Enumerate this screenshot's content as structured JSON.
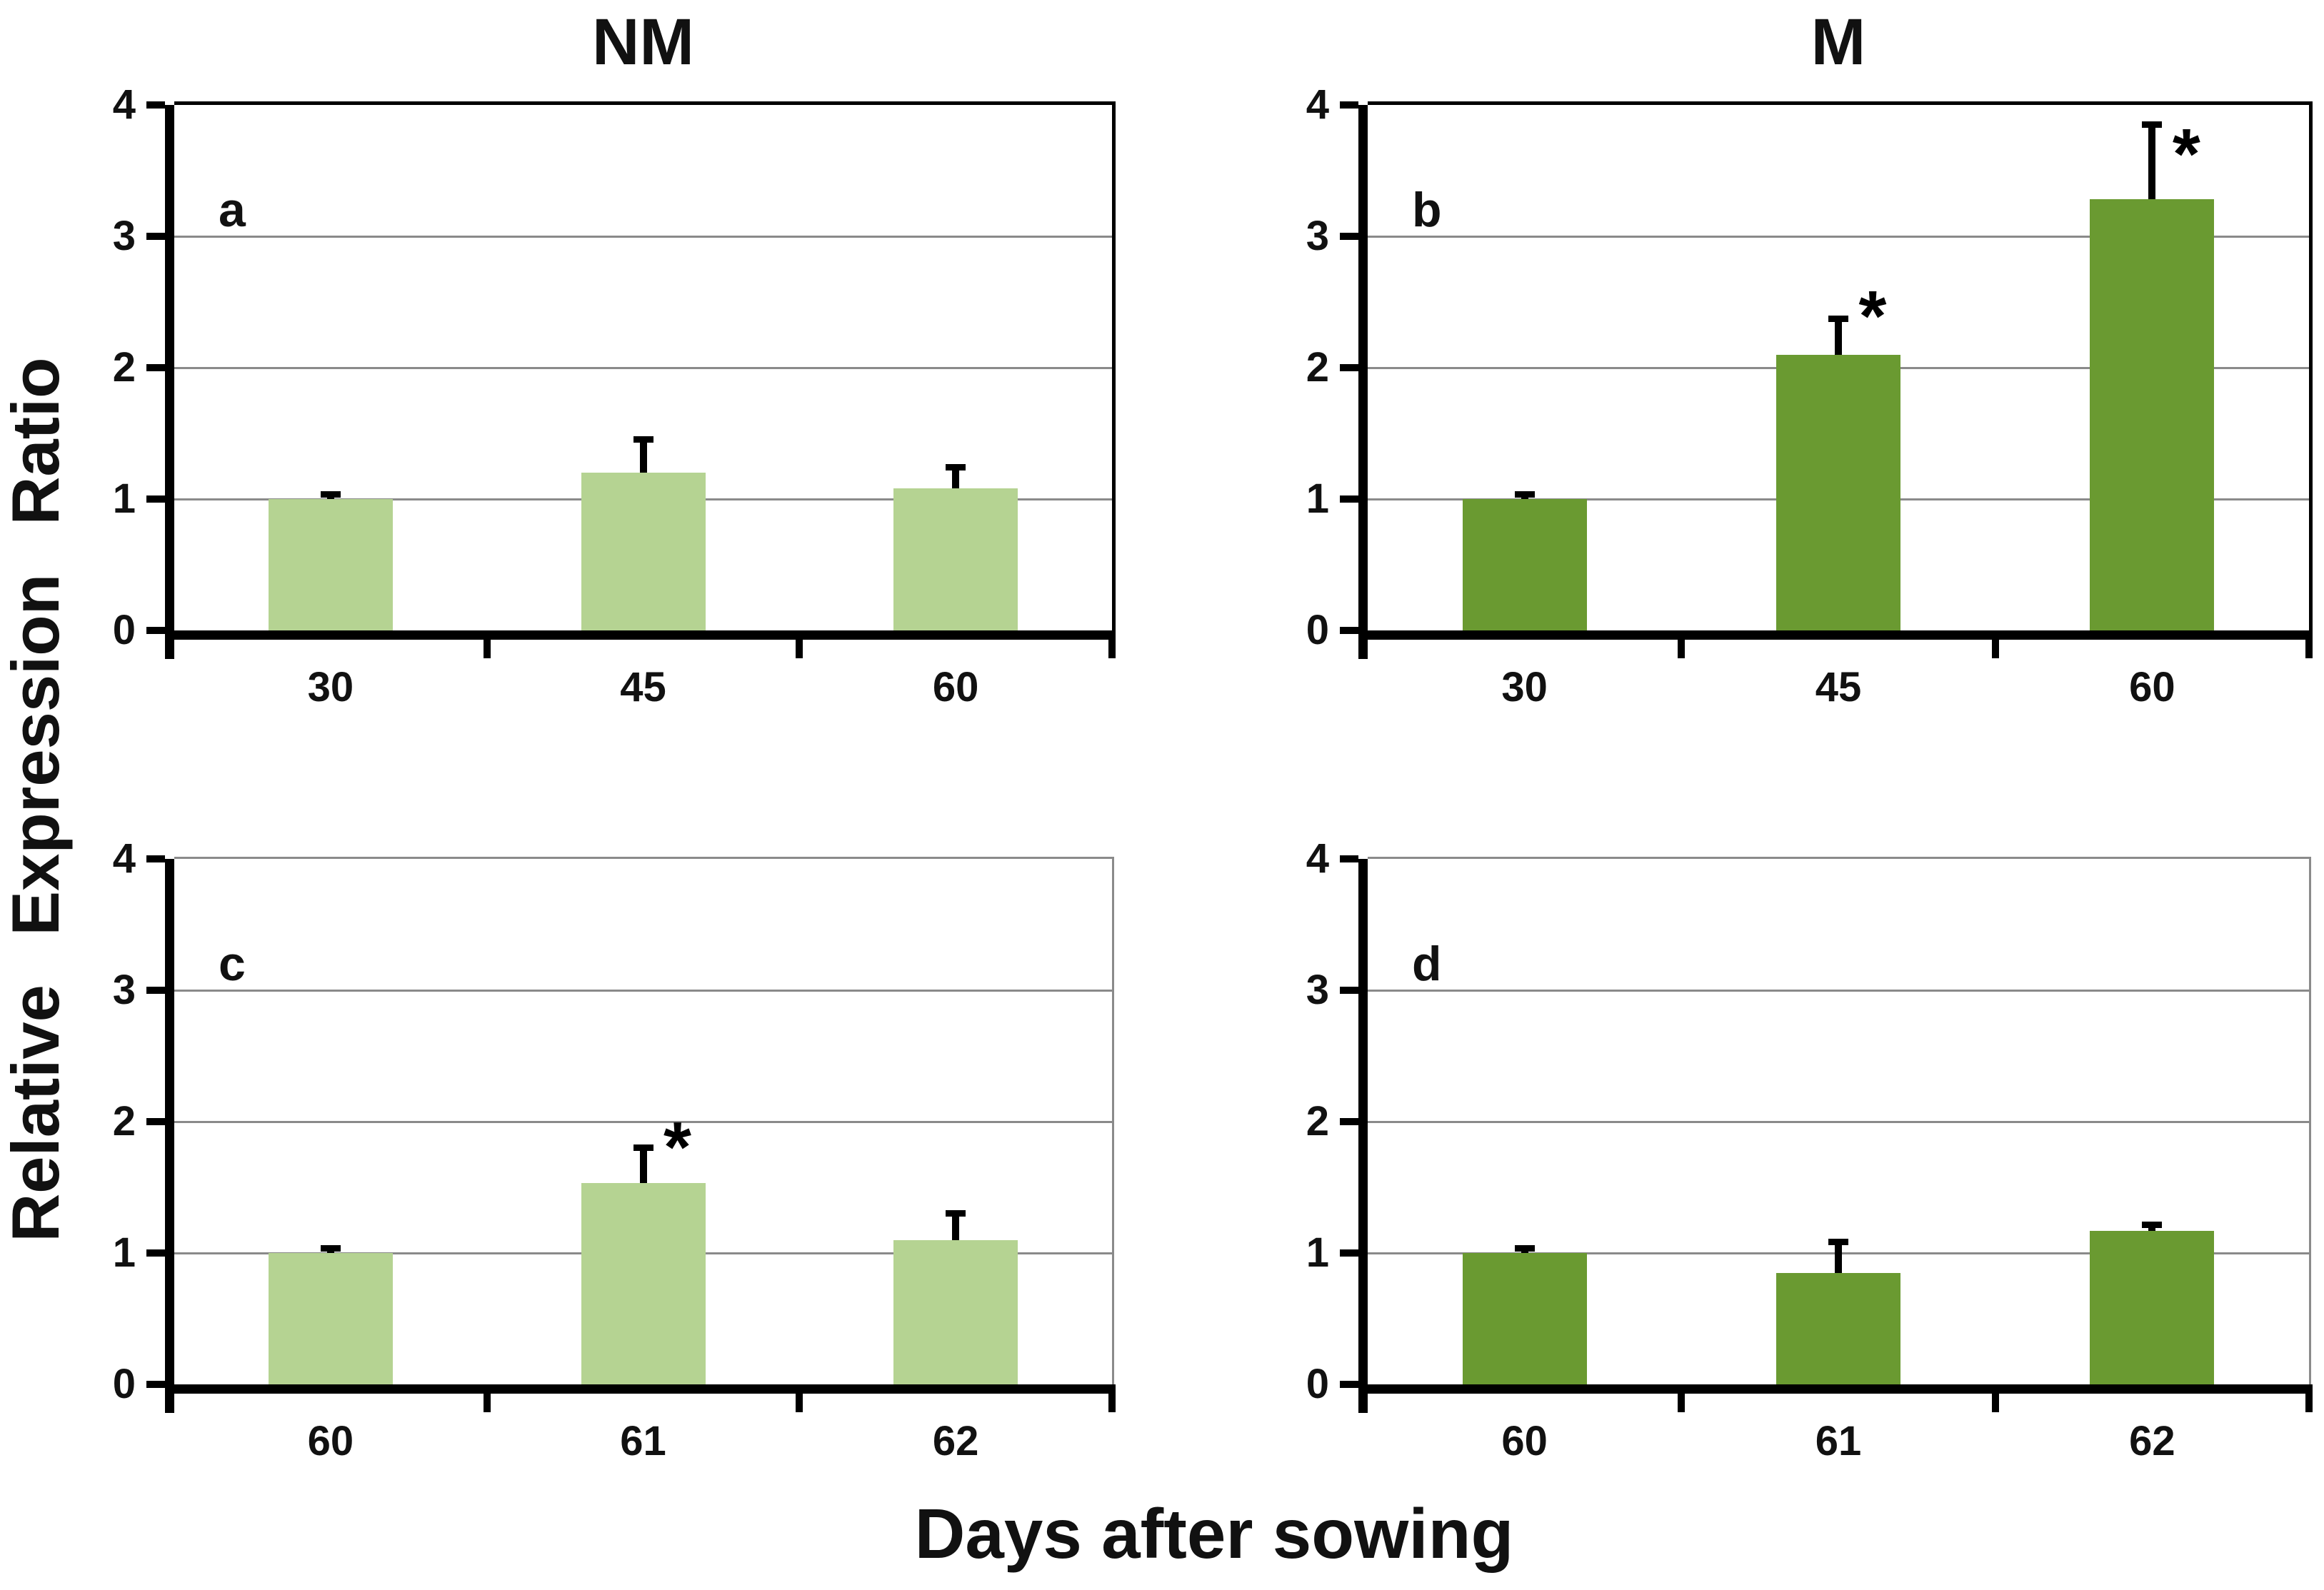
{
  "figure": {
    "column_titles": [
      "NM",
      "M"
    ],
    "ylabel": "Relative Expression Ratio",
    "xlabel": "Days after sowing",
    "colors": {
      "light_green": "#b5d392",
      "dark_green": "#6a9a31",
      "gridline": "#8a8a8a",
      "axis": "#000000"
    }
  },
  "chart_data": [
    {
      "type": "bar",
      "panel_label": "a",
      "column": "NM",
      "bar_color": "#b5d392",
      "categories": [
        "30",
        "45",
        "60"
      ],
      "values": [
        1.0,
        1.2,
        1.08
      ],
      "errors_plus": [
        0.03,
        0.25,
        0.16
      ],
      "significant": [
        false,
        false,
        false
      ],
      "sig_star_y": [
        null,
        null,
        null
      ],
      "ylim": [
        0,
        4
      ],
      "yticks": [
        0,
        1,
        2,
        3,
        4
      ],
      "grid": true
    },
    {
      "type": "bar",
      "panel_label": "b",
      "column": "M",
      "bar_color": "#6a9a31",
      "categories": [
        "30",
        "45",
        "60"
      ],
      "values": [
        1.0,
        2.1,
        3.28
      ],
      "errors_plus": [
        0.03,
        0.27,
        0.57
      ],
      "significant": [
        false,
        true,
        true
      ],
      "sig_star_y": [
        null,
        2.47,
        3.7
      ],
      "ylim": [
        0,
        4
      ],
      "yticks": [
        0,
        1,
        2,
        3,
        4
      ],
      "grid": true
    },
    {
      "type": "bar",
      "panel_label": "c",
      "column": "NM",
      "bar_color": "#b5d392",
      "categories": [
        "60",
        "61",
        "62"
      ],
      "values": [
        1.0,
        1.53,
        1.1
      ],
      "errors_plus": [
        0.03,
        0.27,
        0.2
      ],
      "significant": [
        false,
        true,
        false
      ],
      "sig_star_y": [
        null,
        1.88,
        null
      ],
      "ylim": [
        0,
        4
      ],
      "yticks": [
        0,
        1,
        2,
        3,
        4
      ],
      "grid": true
    },
    {
      "type": "bar",
      "panel_label": "d",
      "column": "M",
      "bar_color": "#6a9a31",
      "categories": [
        "60",
        "61",
        "62"
      ],
      "values": [
        1.0,
        0.85,
        1.17
      ],
      "errors_plus": [
        0.03,
        0.23,
        0.04
      ],
      "significant": [
        false,
        false,
        false
      ],
      "sig_star_y": [
        null,
        null,
        null
      ],
      "ylim": [
        0,
        4
      ],
      "yticks": [
        0,
        1,
        2,
        3,
        4
      ],
      "grid": true
    }
  ]
}
